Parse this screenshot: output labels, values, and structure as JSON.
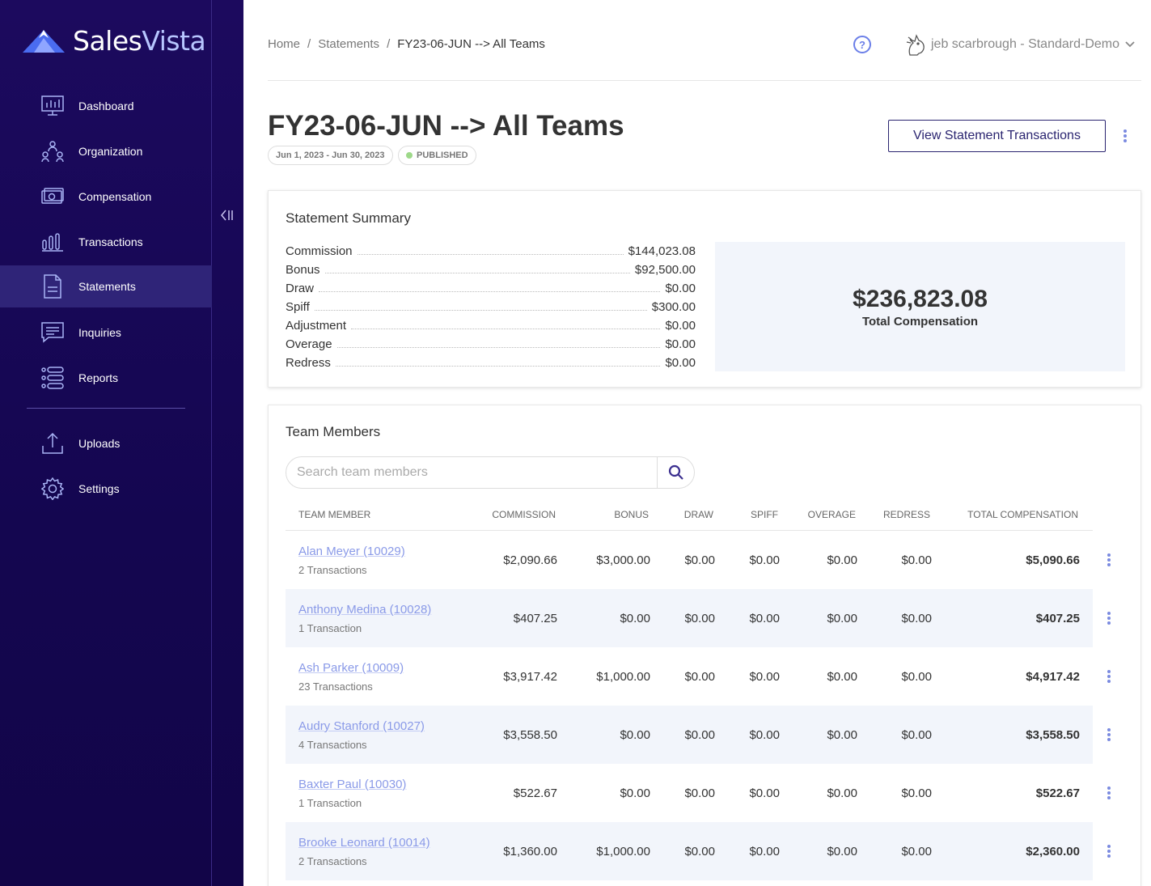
{
  "app": {
    "logo_part1": "Sales",
    "logo_part2": "Vista"
  },
  "sidebar": {
    "items": [
      {
        "label": "Dashboard",
        "icon": "dashboard-icon"
      },
      {
        "label": "Organization",
        "icon": "organization-icon"
      },
      {
        "label": "Compensation",
        "icon": "compensation-icon"
      },
      {
        "label": "Transactions",
        "icon": "transactions-icon"
      },
      {
        "label": "Statements",
        "icon": "statements-icon",
        "active": true
      },
      {
        "label": "Inquiries",
        "icon": "inquiries-icon"
      },
      {
        "label": "Reports",
        "icon": "reports-icon"
      },
      {
        "label": "Uploads",
        "icon": "uploads-icon"
      },
      {
        "label": "Settings",
        "icon": "settings-icon"
      }
    ]
  },
  "header": {
    "breadcrumb": [
      "Home",
      "Statements",
      "FY23-06-JUN --> All Teams"
    ],
    "help_symbol": "?",
    "user_label": "jeb scarbrough - Standard-Demo"
  },
  "page": {
    "title": "FY23-06-JUN --> All Teams",
    "date_range": "Jun 1, 2023 - Jun 30, 2023",
    "status": "PUBLISHED",
    "view_button": "View Statement Transactions"
  },
  "summary": {
    "title": "Statement Summary",
    "rows": [
      {
        "label": "Commission",
        "value": "$144,023.08"
      },
      {
        "label": "Bonus",
        "value": "$92,500.00"
      },
      {
        "label": "Draw",
        "value": "$0.00"
      },
      {
        "label": "Spiff",
        "value": "$300.00"
      },
      {
        "label": "Adjustment",
        "value": "$0.00"
      },
      {
        "label": "Overage",
        "value": "$0.00"
      },
      {
        "label": "Redress",
        "value": "$0.00"
      }
    ],
    "total_amount": "$236,823.08",
    "total_label": "Total Compensation"
  },
  "team": {
    "title": "Team Members",
    "search_placeholder": "Search team members",
    "columns": [
      "TEAM MEMBER",
      "COMMISSION",
      "BONUS",
      "DRAW",
      "SPIFF",
      "OVERAGE",
      "REDRESS",
      "TOTAL COMPENSATION"
    ],
    "rows": [
      {
        "name": "Alan Meyer (10029)",
        "transactions": "2 Transactions",
        "commission": "$2,090.66",
        "bonus": "$3,000.00",
        "draw": "$0.00",
        "spiff": "$0.00",
        "overage": "$0.00",
        "redress": "$0.00",
        "total": "$5,090.66"
      },
      {
        "name": "Anthony Medina (10028)",
        "transactions": "1 Transaction",
        "commission": "$407.25",
        "bonus": "$0.00",
        "draw": "$0.00",
        "spiff": "$0.00",
        "overage": "$0.00",
        "redress": "$0.00",
        "total": "$407.25"
      },
      {
        "name": "Ash Parker (10009)",
        "transactions": "23 Transactions",
        "commission": "$3,917.42",
        "bonus": "$1,000.00",
        "draw": "$0.00",
        "spiff": "$0.00",
        "overage": "$0.00",
        "redress": "$0.00",
        "total": "$4,917.42"
      },
      {
        "name": "Audry Stanford (10027)",
        "transactions": "4 Transactions",
        "commission": "$3,558.50",
        "bonus": "$0.00",
        "draw": "$0.00",
        "spiff": "$0.00",
        "overage": "$0.00",
        "redress": "$0.00",
        "total": "$3,558.50"
      },
      {
        "name": "Baxter Paul (10030)",
        "transactions": "1 Transaction",
        "commission": "$522.67",
        "bonus": "$0.00",
        "draw": "$0.00",
        "spiff": "$0.00",
        "overage": "$0.00",
        "redress": "$0.00",
        "total": "$522.67"
      },
      {
        "name": "Brooke Leonard (10014)",
        "transactions": "2 Transactions",
        "commission": "$1,360.00",
        "bonus": "$1,000.00",
        "draw": "$0.00",
        "spiff": "$0.00",
        "overage": "$0.00",
        "redress": "$0.00",
        "total": "$2,360.00"
      }
    ]
  },
  "colors": {
    "sidebar_bg": "#1c0a5e",
    "sidebar_active": "#2f2478",
    "accent": "#6b7fe8",
    "link": "#8a9ae8",
    "alt_row": "#f2f5fb",
    "published_dot": "#9ed98a"
  }
}
